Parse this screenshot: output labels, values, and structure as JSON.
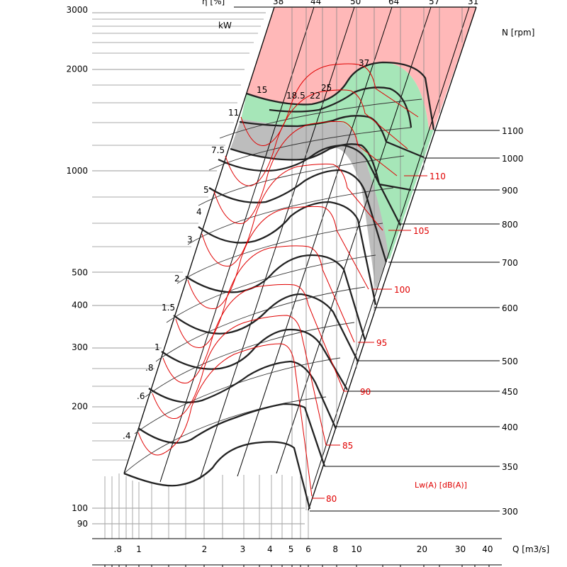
{
  "chart_data": {
    "type": "line",
    "title": "",
    "xlabel": "Q [m3/s]",
    "ylabel": "",
    "x_scale": "log",
    "y_scale": "log",
    "xlim": [
      0.7,
      45
    ],
    "ylim": [
      85,
      3000
    ],
    "x_ticks": [
      {
        "v": 0.8,
        "t": ".8"
      },
      {
        "v": 1,
        "t": "1"
      },
      {
        "v": 2,
        "t": "2"
      },
      {
        "v": 3,
        "t": "3"
      },
      {
        "v": 4,
        "t": "4"
      },
      {
        "v": 5,
        "t": "5"
      },
      {
        "v": 6,
        "t": "6"
      },
      {
        "v": 8,
        "t": "8"
      },
      {
        "v": 10,
        "t": "10"
      },
      {
        "v": 20,
        "t": "20"
      },
      {
        "v": 30,
        "t": "30"
      },
      {
        "v": 40,
        "t": "40"
      }
    ],
    "y_ticks": [
      {
        "v": 90,
        "t": "90"
      },
      {
        "v": 100,
        "t": "100"
      },
      {
        "v": 200,
        "t": "200"
      },
      {
        "v": 300,
        "t": "300"
      },
      {
        "v": 400,
        "t": "400"
      },
      {
        "v": 500,
        "t": "500"
      },
      {
        "v": 1000,
        "t": "1000"
      },
      {
        "v": 2000,
        "t": "2000"
      },
      {
        "v": 3000,
        "t": "3000"
      }
    ],
    "efficiency_label": "η [%]",
    "efficiency_values": [
      "38",
      "44",
      "50",
      "64",
      "57",
      "31"
    ],
    "power_label": "kW",
    "power_values": [
      "15",
      "11",
      "7.5",
      "5",
      "4",
      "3",
      "2",
      "1.5",
      "1",
      ".8",
      ".6",
      ".4",
      "18.5",
      "22",
      "25",
      "37"
    ],
    "speed_label": "N [rpm]",
    "speeds": [
      300,
      350,
      400,
      450,
      500,
      600,
      700,
      800,
      900,
      1000,
      1100
    ],
    "sound_label": "Lw(A)  [dB(A)]",
    "sound_levels": [
      80,
      85,
      90,
      95,
      100,
      105,
      110
    ],
    "colors": {
      "grid": "#a0a0a0",
      "curve": "#000000",
      "sound": "#e00000",
      "zone_red": "#ffb8b8",
      "zone_green": "#a6e6b8",
      "zone_grey": "#bdbdbd"
    }
  }
}
